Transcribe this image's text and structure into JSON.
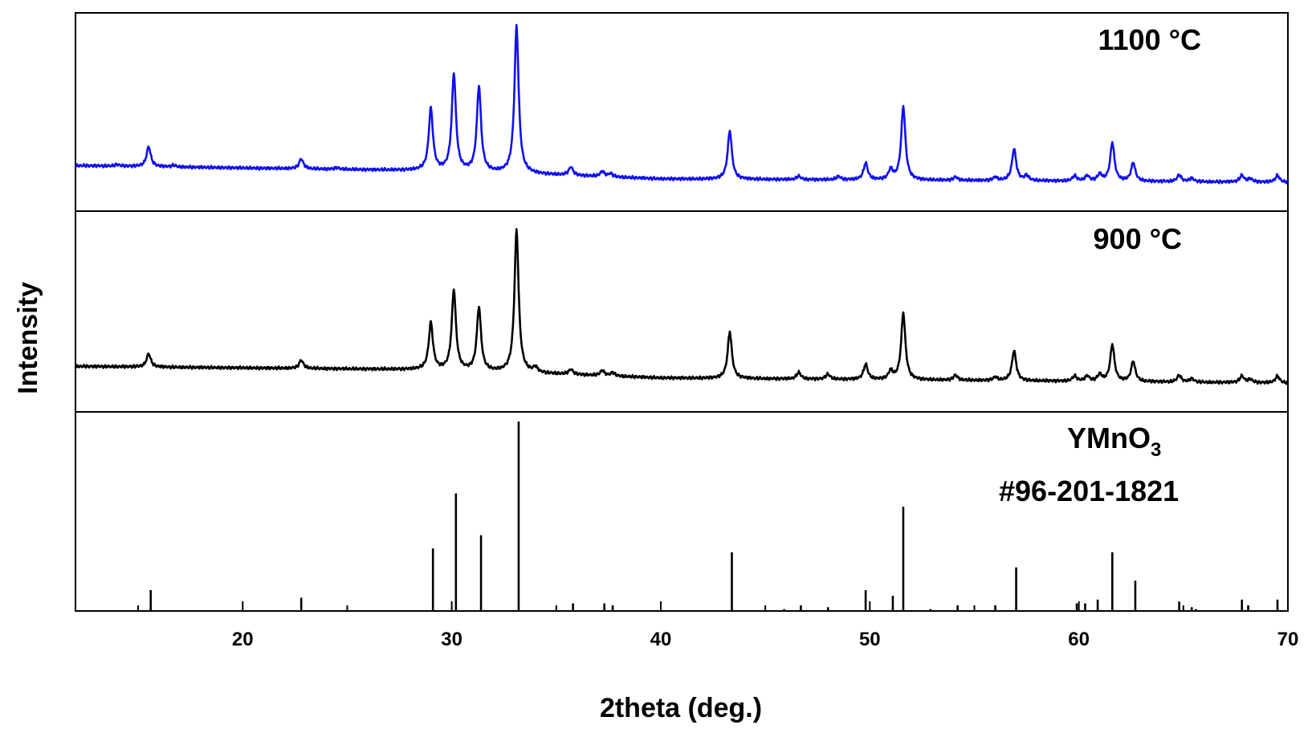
{
  "chart_data": {
    "type": "line",
    "xlabel": "2theta (deg.)",
    "ylabel": "Intensity",
    "xlim": [
      12,
      70
    ],
    "xticks": [
      20,
      30,
      40,
      50,
      60,
      70
    ],
    "x_minor_step": 5,
    "grid": false,
    "panels": [
      {
        "label": "1100 °C",
        "color": "#1010ee",
        "baseline": [
          [
            12,
            0.1
          ],
          [
            28.5,
            0.07
          ],
          [
            33.6,
            0.05
          ],
          [
            40,
            0.02
          ],
          [
            70,
            0.0
          ]
        ],
        "peaks": [
          [
            14,
            0.01
          ],
          [
            15.5,
            0.12
          ],
          [
            16.7,
            0.01
          ],
          [
            22.8,
            0.06
          ],
          [
            24.5,
            0.01
          ],
          [
            29.0,
            0.37
          ],
          [
            30.1,
            0.58
          ],
          [
            31.3,
            0.51
          ],
          [
            33.1,
            0.88
          ],
          [
            35.7,
            0.05
          ],
          [
            37.2,
            0.03
          ],
          [
            37.6,
            0.02
          ],
          [
            43.3,
            0.29
          ],
          [
            46.6,
            0.02
          ],
          [
            48.5,
            0.02
          ],
          [
            49.8,
            0.1
          ],
          [
            51.0,
            0.06
          ],
          [
            51.6,
            0.44
          ],
          [
            54.1,
            0.02
          ],
          [
            56.0,
            0.02
          ],
          [
            56.9,
            0.19
          ],
          [
            57.5,
            0.03
          ],
          [
            59.8,
            0.03
          ],
          [
            60.4,
            0.03
          ],
          [
            61.0,
            0.04
          ],
          [
            61.6,
            0.23
          ],
          [
            62.6,
            0.11
          ],
          [
            64.8,
            0.04
          ],
          [
            65.4,
            0.02
          ],
          [
            67.8,
            0.04
          ],
          [
            68.2,
            0.02
          ],
          [
            69.5,
            0.04
          ]
        ]
      },
      {
        "label": "900 °C",
        "color": "#000000",
        "baseline": [
          [
            12,
            0.1
          ],
          [
            28.5,
            0.08
          ],
          [
            33.6,
            0.06
          ],
          [
            40,
            0.03
          ],
          [
            70,
            0.0
          ]
        ],
        "peaks": [
          [
            15.5,
            0.08
          ],
          [
            22.8,
            0.05
          ],
          [
            29.0,
            0.28
          ],
          [
            30.1,
            0.48
          ],
          [
            31.3,
            0.38
          ],
          [
            33.1,
            0.85
          ],
          [
            34.0,
            0.03
          ],
          [
            35.7,
            0.03
          ],
          [
            37.2,
            0.03
          ],
          [
            37.7,
            0.02
          ],
          [
            43.3,
            0.28
          ],
          [
            46.6,
            0.04
          ],
          [
            48.0,
            0.03
          ],
          [
            49.8,
            0.09
          ],
          [
            51.0,
            0.05
          ],
          [
            51.6,
            0.4
          ],
          [
            54.1,
            0.03
          ],
          [
            56.0,
            0.02
          ],
          [
            56.9,
            0.18
          ],
          [
            59.8,
            0.03
          ],
          [
            60.4,
            0.03
          ],
          [
            61.0,
            0.04
          ],
          [
            61.6,
            0.22
          ],
          [
            62.6,
            0.12
          ],
          [
            64.8,
            0.04
          ],
          [
            65.4,
            0.02
          ],
          [
            67.8,
            0.04
          ],
          [
            68.2,
            0.02
          ],
          [
            69.5,
            0.04
          ]
        ]
      },
      {
        "label": "YMnO",
        "label_sub": "3",
        "label2": "#96-201-1821",
        "color": "#000000",
        "type": "stick",
        "peaks": [
          [
            15.6,
            0.11
          ],
          [
            22.8,
            0.07
          ],
          [
            29.1,
            0.33
          ],
          [
            30.2,
            0.62
          ],
          [
            31.4,
            0.4
          ],
          [
            33.2,
            1.0
          ],
          [
            35.8,
            0.04
          ],
          [
            37.3,
            0.04
          ],
          [
            37.7,
            0.03
          ],
          [
            43.4,
            0.31
          ],
          [
            45.9,
            0.01
          ],
          [
            46.7,
            0.03
          ],
          [
            48.0,
            0.02
          ],
          [
            49.8,
            0.11
          ],
          [
            51.1,
            0.08
          ],
          [
            51.6,
            0.55
          ],
          [
            52.9,
            0.01
          ],
          [
            54.2,
            0.03
          ],
          [
            56.0,
            0.03
          ],
          [
            57.0,
            0.23
          ],
          [
            59.9,
            0.04
          ],
          [
            60.3,
            0.04
          ],
          [
            60.9,
            0.06
          ],
          [
            61.6,
            0.31
          ],
          [
            62.7,
            0.16
          ],
          [
            64.8,
            0.05
          ],
          [
            65.4,
            0.02
          ],
          [
            65.6,
            0.01
          ],
          [
            67.8,
            0.06
          ],
          [
            68.1,
            0.03
          ],
          [
            69.5,
            0.06
          ]
        ]
      }
    ]
  }
}
